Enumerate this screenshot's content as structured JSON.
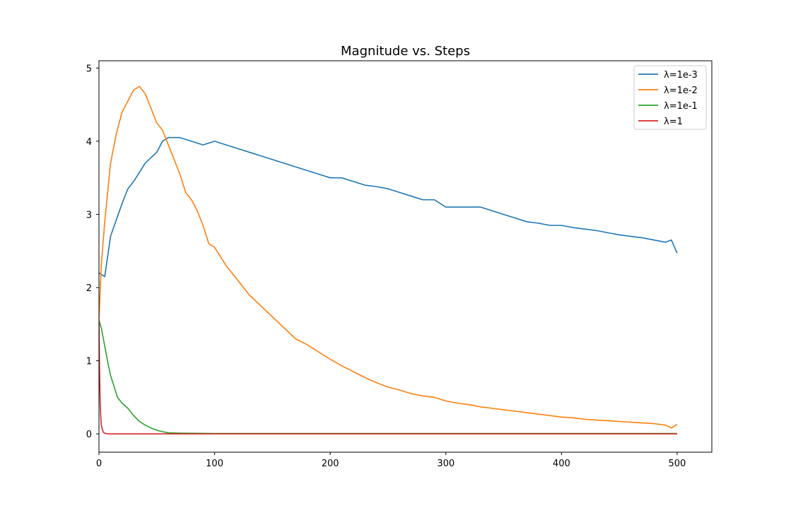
{
  "chart_data": {
    "type": "line",
    "title": "Magnitude vs. Steps",
    "xlabel": "",
    "ylabel": "",
    "xlim": [
      0,
      530
    ],
    "ylim": [
      -0.25,
      5.1
    ],
    "x_ticks": [
      "0",
      "100",
      "200",
      "300",
      "400",
      "500"
    ],
    "y_ticks": [
      "0",
      "1",
      "2",
      "3",
      "4",
      "5"
    ],
    "legend_position": "top-right",
    "grid": false,
    "series": [
      {
        "name": "λ=1e-3",
        "color": "#1f77b4",
        "points": [
          [
            0,
            2.2
          ],
          [
            5,
            2.15
          ],
          [
            10,
            2.7
          ],
          [
            20,
            3.15
          ],
          [
            25,
            3.35
          ],
          [
            30,
            3.45
          ],
          [
            40,
            3.7
          ],
          [
            50,
            3.85
          ],
          [
            55,
            4.0
          ],
          [
            60,
            4.05
          ],
          [
            70,
            4.05
          ],
          [
            80,
            4.0
          ],
          [
            90,
            3.95
          ],
          [
            100,
            4.0
          ],
          [
            110,
            3.95
          ],
          [
            120,
            3.9
          ],
          [
            130,
            3.85
          ],
          [
            140,
            3.8
          ],
          [
            150,
            3.75
          ],
          [
            160,
            3.7
          ],
          [
            170,
            3.65
          ],
          [
            180,
            3.6
          ],
          [
            190,
            3.55
          ],
          [
            200,
            3.5
          ],
          [
            210,
            3.5
          ],
          [
            220,
            3.45
          ],
          [
            230,
            3.4
          ],
          [
            240,
            3.38
          ],
          [
            250,
            3.35
          ],
          [
            260,
            3.3
          ],
          [
            270,
            3.25
          ],
          [
            280,
            3.2
          ],
          [
            290,
            3.2
          ],
          [
            300,
            3.1
          ],
          [
            310,
            3.1
          ],
          [
            320,
            3.1
          ],
          [
            330,
            3.1
          ],
          [
            340,
            3.05
          ],
          [
            350,
            3.0
          ],
          [
            360,
            2.95
          ],
          [
            370,
            2.9
          ],
          [
            380,
            2.88
          ],
          [
            390,
            2.85
          ],
          [
            400,
            2.85
          ],
          [
            410,
            2.82
          ],
          [
            420,
            2.8
          ],
          [
            430,
            2.78
          ],
          [
            440,
            2.75
          ],
          [
            450,
            2.72
          ],
          [
            460,
            2.7
          ],
          [
            470,
            2.68
          ],
          [
            480,
            2.65
          ],
          [
            490,
            2.62
          ],
          [
            495,
            2.65
          ],
          [
            500,
            2.47
          ]
        ]
      },
      {
        "name": "λ=1e-2",
        "color": "#ff7f0e",
        "points": [
          [
            0,
            1.55
          ],
          [
            2,
            2.3
          ],
          [
            5,
            2.9
          ],
          [
            10,
            3.7
          ],
          [
            15,
            4.1
          ],
          [
            20,
            4.4
          ],
          [
            25,
            4.55
          ],
          [
            30,
            4.7
          ],
          [
            35,
            4.75
          ],
          [
            40,
            4.65
          ],
          [
            45,
            4.45
          ],
          [
            50,
            4.25
          ],
          [
            55,
            4.15
          ],
          [
            60,
            3.95
          ],
          [
            65,
            3.75
          ],
          [
            70,
            3.55
          ],
          [
            75,
            3.3
          ],
          [
            80,
            3.2
          ],
          [
            85,
            3.05
          ],
          [
            90,
            2.85
          ],
          [
            95,
            2.6
          ],
          [
            100,
            2.55
          ],
          [
            110,
            2.3
          ],
          [
            120,
            2.1
          ],
          [
            130,
            1.9
          ],
          [
            140,
            1.75
          ],
          [
            150,
            1.6
          ],
          [
            160,
            1.45
          ],
          [
            170,
            1.3
          ],
          [
            180,
            1.22
          ],
          [
            190,
            1.12
          ],
          [
            200,
            1.02
          ],
          [
            210,
            0.93
          ],
          [
            220,
            0.85
          ],
          [
            230,
            0.77
          ],
          [
            240,
            0.7
          ],
          [
            250,
            0.64
          ],
          [
            260,
            0.6
          ],
          [
            270,
            0.55
          ],
          [
            280,
            0.52
          ],
          [
            290,
            0.5
          ],
          [
            300,
            0.45
          ],
          [
            310,
            0.42
          ],
          [
            320,
            0.4
          ],
          [
            330,
            0.37
          ],
          [
            340,
            0.35
          ],
          [
            350,
            0.33
          ],
          [
            360,
            0.31
          ],
          [
            370,
            0.29
          ],
          [
            380,
            0.27
          ],
          [
            390,
            0.25
          ],
          [
            400,
            0.23
          ],
          [
            410,
            0.22
          ],
          [
            420,
            0.2
          ],
          [
            430,
            0.19
          ],
          [
            440,
            0.18
          ],
          [
            450,
            0.17
          ],
          [
            460,
            0.16
          ],
          [
            470,
            0.15
          ],
          [
            480,
            0.14
          ],
          [
            490,
            0.12
          ],
          [
            495,
            0.08
          ],
          [
            500,
            0.13
          ]
        ]
      },
      {
        "name": "λ=1e-1",
        "color": "#2ca02c",
        "points": [
          [
            0,
            1.55
          ],
          [
            2,
            1.45
          ],
          [
            5,
            1.2
          ],
          [
            8,
            0.95
          ],
          [
            10,
            0.8
          ],
          [
            13,
            0.65
          ],
          [
            16,
            0.5
          ],
          [
            20,
            0.42
          ],
          [
            25,
            0.35
          ],
          [
            30,
            0.25
          ],
          [
            35,
            0.17
          ],
          [
            40,
            0.12
          ],
          [
            45,
            0.08
          ],
          [
            50,
            0.05
          ],
          [
            55,
            0.03
          ],
          [
            60,
            0.015
          ],
          [
            70,
            0.01
          ],
          [
            100,
            0.005
          ],
          [
            200,
            0.005
          ],
          [
            300,
            0.005
          ],
          [
            400,
            0.005
          ],
          [
            500,
            0.005
          ]
        ]
      },
      {
        "name": "λ=1",
        "color": "#d62728",
        "points": [
          [
            0,
            1.55
          ],
          [
            0.5,
            0.9
          ],
          [
            1,
            0.45
          ],
          [
            1.5,
            0.25
          ],
          [
            2,
            0.13
          ],
          [
            3,
            0.05
          ],
          [
            4,
            0.02
          ],
          [
            5,
            0.008
          ],
          [
            7,
            0.003
          ],
          [
            10,
            0.0
          ],
          [
            100,
            0.0
          ],
          [
            200,
            0.0
          ],
          [
            300,
            0.0
          ],
          [
            400,
            0.0
          ],
          [
            500,
            0.0
          ]
        ]
      }
    ]
  }
}
